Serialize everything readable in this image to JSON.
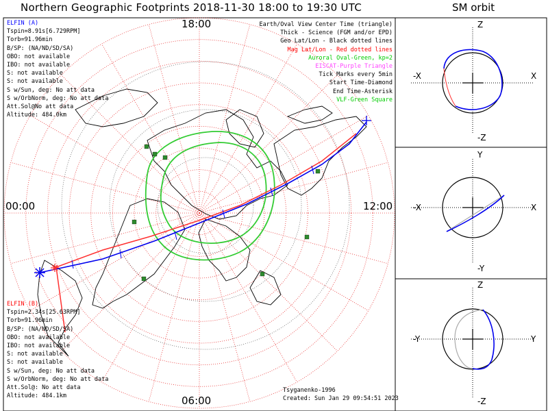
{
  "title": "Northern Geographic Footprints 2018-11-30 18:00 to 19:30 UTC",
  "sm_title": "SM orbit",
  "map": {
    "time_labels": {
      "top": "18:00",
      "bottom": "06:00",
      "left": "00:00",
      "right": "12:00"
    },
    "legend": [
      {
        "text": "Earth/Oval View Center Time (triangle)",
        "color": "#000000"
      },
      {
        "text": "Thick - Science (FGM and/or EPD)",
        "color": "#000000"
      },
      {
        "text": "Geo Lat/Lon - Black dotted lines",
        "color": "#000000"
      },
      {
        "text": "Mag Lat/Lon - Red dotted lines",
        "color": "#ff0000"
      },
      {
        "text": "Auroral Oval-Green, kp=2",
        "color": "#00cc00"
      },
      {
        "text": "EISCAT-Purple Triangle",
        "color": "#ff44ff"
      },
      {
        "text": "Tick Marks every 5min",
        "color": "#000000"
      },
      {
        "text": "Start Time-Diamond",
        "color": "#000000"
      },
      {
        "text": "End Time-Asterisk",
        "color": "#000000"
      },
      {
        "text": "VLF-Green Square",
        "color": "#00cc00"
      }
    ],
    "credit": [
      "Tsyganenko-1996",
      "Created: Sun Jan 29 09:54:51 2023"
    ]
  },
  "elfin_a": {
    "header": "ELFIN (A)",
    "color": "#0000ff",
    "lines": [
      "Tspin=8.91s[6.729RPM]",
      "Torb=91.96min",
      "B/SP: (NA/ND/SD/SA)",
      "OBO: not available",
      "IBO: not available",
      "S: not available",
      "S: not available",
      "S w/Sun, deg: No att data",
      "S w/OrbNorm, deg: No att data",
      "Att.Sol@No att data",
      "Altitude: 484.0km"
    ]
  },
  "elfin_b": {
    "header": "ELFIN (B)",
    "color": "#ff0000",
    "lines": [
      "Tspin=2.34s[25.63RPM]",
      "Torb=91.96min",
      "B/SP: (NA/ND/SD/SA)",
      "OBO: not available",
      "IBO: not available",
      "S: not available",
      "S: not available",
      "S w/Sun, deg: No att data",
      "S w/OrbNorm, deg: No att data",
      "Att.Sol@: No att data",
      "Altitude: 484.1km"
    ]
  },
  "sm_panels": [
    {
      "top": "Z",
      "bottom": "-Z",
      "left": "-X",
      "right": "X"
    },
    {
      "top": "Y",
      "bottom": "-Y",
      "left": "-X",
      "right": "X"
    },
    {
      "top": "Z",
      "bottom": "-Z",
      "left": "-Y",
      "right": "Y"
    }
  ]
}
